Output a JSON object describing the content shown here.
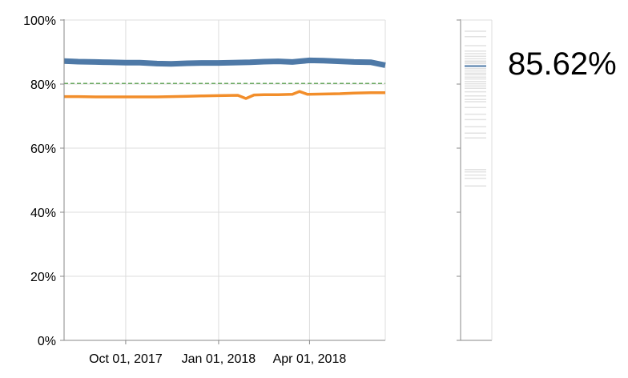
{
  "chart_data": {
    "type": "line",
    "y_axis": {
      "ticks": [
        "0%",
        "20%",
        "40%",
        "60%",
        "80%",
        "100%"
      ],
      "tick_values": [
        0,
        20,
        40,
        60,
        80,
        100
      ],
      "range": [
        0,
        100
      ]
    },
    "x_axis": {
      "range": [
        "2017-08-01",
        "2018-06-15"
      ],
      "ticks": [
        {
          "date": "2017-10-01",
          "label": "Oct 01, 2017"
        },
        {
          "date": "2018-01-01",
          "label": "Jan 01, 2018"
        },
        {
          "date": "2018-04-01",
          "label": "Apr 01, 2018"
        }
      ]
    },
    "grid": true,
    "reference_line": {
      "value": 80.2,
      "style": "dashed",
      "color": "#59a14f"
    },
    "series": [
      {
        "color": "#4e79a7",
        "points": [
          [
            "2017-08-01",
            87.2
          ],
          [
            "2017-08-15",
            87.0
          ],
          [
            "2017-09-01",
            86.9
          ],
          [
            "2017-09-15",
            86.8
          ],
          [
            "2017-10-01",
            86.7
          ],
          [
            "2017-10-15",
            86.7
          ],
          [
            "2017-11-01",
            86.4
          ],
          [
            "2017-11-15",
            86.3
          ],
          [
            "2017-12-01",
            86.5
          ],
          [
            "2017-12-15",
            86.6
          ],
          [
            "2018-01-01",
            86.6
          ],
          [
            "2018-01-15",
            86.7
          ],
          [
            "2018-02-01",
            86.8
          ],
          [
            "2018-02-15",
            87.0
          ],
          [
            "2018-03-01",
            87.1
          ],
          [
            "2018-03-15",
            86.9
          ],
          [
            "2018-04-01",
            87.4
          ],
          [
            "2018-04-15",
            87.3
          ],
          [
            "2018-05-01",
            87.1
          ],
          [
            "2018-05-15",
            86.9
          ],
          [
            "2018-06-01",
            86.8
          ],
          [
            "2018-06-15",
            85.9
          ]
        ]
      },
      {
        "color": "#f28e2b",
        "points": [
          [
            "2017-08-01",
            76.1
          ],
          [
            "2017-08-15",
            76.1
          ],
          [
            "2017-09-01",
            76.0
          ],
          [
            "2017-10-01",
            76.0
          ],
          [
            "2017-11-01",
            76.0
          ],
          [
            "2017-12-01",
            76.2
          ],
          [
            "2017-12-15",
            76.3
          ],
          [
            "2018-01-01",
            76.4
          ],
          [
            "2018-01-20",
            76.5
          ],
          [
            "2018-01-28",
            75.5
          ],
          [
            "2018-02-05",
            76.6
          ],
          [
            "2018-02-15",
            76.7
          ],
          [
            "2018-03-01",
            76.7
          ],
          [
            "2018-03-15",
            76.8
          ],
          [
            "2018-03-22",
            77.7
          ],
          [
            "2018-03-30",
            76.8
          ],
          [
            "2018-04-15",
            76.9
          ],
          [
            "2018-05-01",
            77.0
          ],
          [
            "2018-05-15",
            77.2
          ],
          [
            "2018-06-01",
            77.3
          ],
          [
            "2018-06-15",
            77.3
          ]
        ]
      }
    ],
    "distribution": {
      "highlight_value": 85.62,
      "highlight_color": "#4e79a7",
      "values": [
        96.5,
        94.8,
        92.0,
        90.3,
        89.5,
        88.7,
        87.9,
        87.2,
        86.9,
        86.4,
        85.6,
        84.8,
        84.1,
        83.4,
        82.9,
        82.2,
        81.6,
        80.8,
        80.1,
        79.4,
        78.7,
        77.6,
        76.3,
        75.2,
        74.5,
        72.7,
        70.6,
        68.9,
        66.7,
        64.7,
        63.2,
        53.3,
        52.6,
        51.6,
        50.6,
        48.2
      ],
      "range": [
        0,
        100
      ]
    }
  },
  "big_value": "85.62%"
}
